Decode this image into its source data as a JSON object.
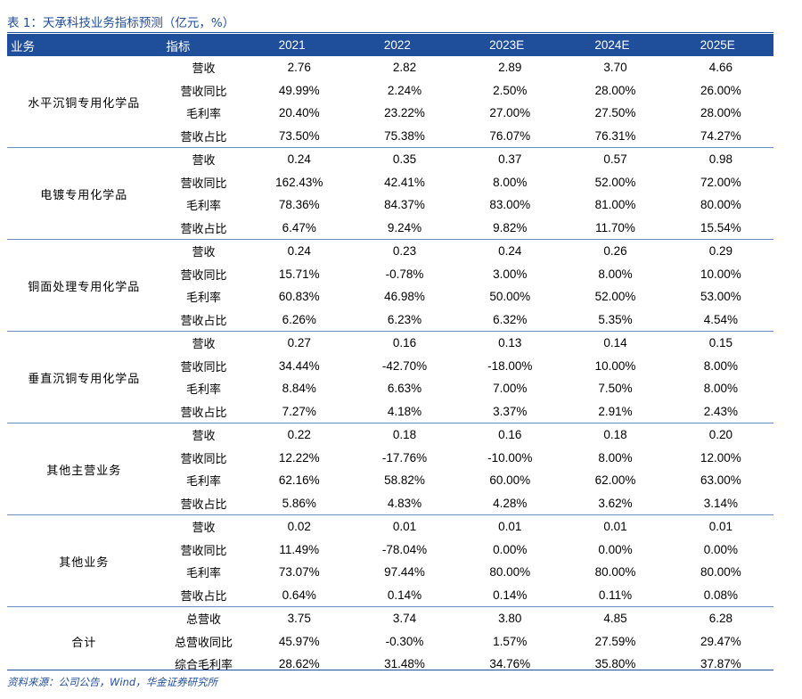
{
  "title": "表 1：天承科技业务指标预测（亿元，%）",
  "header": {
    "business": "业务",
    "metric": "指标",
    "years": [
      "2021",
      "2022",
      "2023E",
      "2024E",
      "2025E"
    ]
  },
  "groups": [
    {
      "name": "水平沉铜专用化学品",
      "rows": [
        {
          "metric": "营收",
          "values": [
            "2.76",
            "2.82",
            "2.89",
            "3.70",
            "4.66"
          ]
        },
        {
          "metric": "营收同比",
          "values": [
            "49.99%",
            "2.24%",
            "2.50%",
            "28.00%",
            "26.00%"
          ]
        },
        {
          "metric": "毛利率",
          "values": [
            "20.40%",
            "23.22%",
            "27.00%",
            "27.50%",
            "28.00%"
          ]
        },
        {
          "metric": "营收占比",
          "values": [
            "73.50%",
            "75.38%",
            "76.07%",
            "76.31%",
            "74.27%"
          ]
        }
      ]
    },
    {
      "name": "电镀专用化学品",
      "rows": [
        {
          "metric": "营收",
          "values": [
            "0.24",
            "0.35",
            "0.37",
            "0.57",
            "0.98"
          ]
        },
        {
          "metric": "营收同比",
          "values": [
            "162.43%",
            "42.41%",
            "8.00%",
            "52.00%",
            "72.00%"
          ]
        },
        {
          "metric": "毛利率",
          "values": [
            "78.36%",
            "84.37%",
            "83.00%",
            "81.00%",
            "80.00%"
          ]
        },
        {
          "metric": "营收占比",
          "values": [
            "6.47%",
            "9.24%",
            "9.82%",
            "11.70%",
            "15.54%"
          ]
        }
      ]
    },
    {
      "name": "铜面处理专用化学品",
      "rows": [
        {
          "metric": "营收",
          "values": [
            "0.24",
            "0.23",
            "0.24",
            "0.26",
            "0.29"
          ]
        },
        {
          "metric": "营收同比",
          "values": [
            "15.71%",
            "-0.78%",
            "3.00%",
            "8.00%",
            "10.00%"
          ]
        },
        {
          "metric": "毛利率",
          "values": [
            "60.83%",
            "46.98%",
            "50.00%",
            "52.00%",
            "53.00%"
          ]
        },
        {
          "metric": "营收占比",
          "values": [
            "6.26%",
            "6.23%",
            "6.32%",
            "5.35%",
            "4.54%"
          ]
        }
      ]
    },
    {
      "name": "垂直沉铜专用化学品",
      "rows": [
        {
          "metric": "营收",
          "values": [
            "0.27",
            "0.16",
            "0.13",
            "0.14",
            "0.15"
          ]
        },
        {
          "metric": "营收同比",
          "values": [
            "34.44%",
            "-42.70%",
            "-18.00%",
            "10.00%",
            "8.00%"
          ]
        },
        {
          "metric": "毛利率",
          "values": [
            "8.84%",
            "6.63%",
            "7.00%",
            "7.50%",
            "8.00%"
          ]
        },
        {
          "metric": "营收占比",
          "values": [
            "7.27%",
            "4.18%",
            "3.37%",
            "2.91%",
            "2.43%"
          ]
        }
      ]
    },
    {
      "name": "其他主营业务",
      "rows": [
        {
          "metric": "营收",
          "values": [
            "0.22",
            "0.18",
            "0.16",
            "0.18",
            "0.20"
          ]
        },
        {
          "metric": "营收同比",
          "values": [
            "12.22%",
            "-17.76%",
            "-10.00%",
            "8.00%",
            "12.00%"
          ]
        },
        {
          "metric": "毛利率",
          "values": [
            "62.16%",
            "58.82%",
            "60.00%",
            "62.00%",
            "63.00%"
          ]
        },
        {
          "metric": "营收占比",
          "values": [
            "5.86%",
            "4.83%",
            "4.28%",
            "3.62%",
            "3.14%"
          ]
        }
      ]
    },
    {
      "name": "其他业务",
      "rows": [
        {
          "metric": "营收",
          "values": [
            "0.02",
            "0.01",
            "0.01",
            "0.01",
            "0.01"
          ]
        },
        {
          "metric": "营收同比",
          "values": [
            "11.49%",
            "-78.04%",
            "0.00%",
            "0.00%",
            "0.00%"
          ]
        },
        {
          "metric": "毛利率",
          "values": [
            "73.07%",
            "97.44%",
            "80.00%",
            "80.00%",
            "80.00%"
          ]
        },
        {
          "metric": "营收占比",
          "values": [
            "0.64%",
            "0.14%",
            "0.14%",
            "0.11%",
            "0.08%"
          ]
        }
      ]
    },
    {
      "name": "合计",
      "rows": [
        {
          "metric": "总营收",
          "values": [
            "3.75",
            "3.74",
            "3.80",
            "4.85",
            "6.28"
          ]
        },
        {
          "metric": "总营收同比",
          "values": [
            "45.97%",
            "-0.30%",
            "1.57%",
            "27.59%",
            "29.47%"
          ]
        },
        {
          "metric": "综合毛利率",
          "values": [
            "28.62%",
            "31.48%",
            "34.76%",
            "35.80%",
            "37.87%"
          ]
        }
      ]
    }
  ],
  "source": "资料来源：公司公告，Wind，华金证券研究所",
  "colors": {
    "header_bg": "#1f4e9a",
    "accent": "#1f4e9a",
    "divider": "#6d8cc4"
  }
}
